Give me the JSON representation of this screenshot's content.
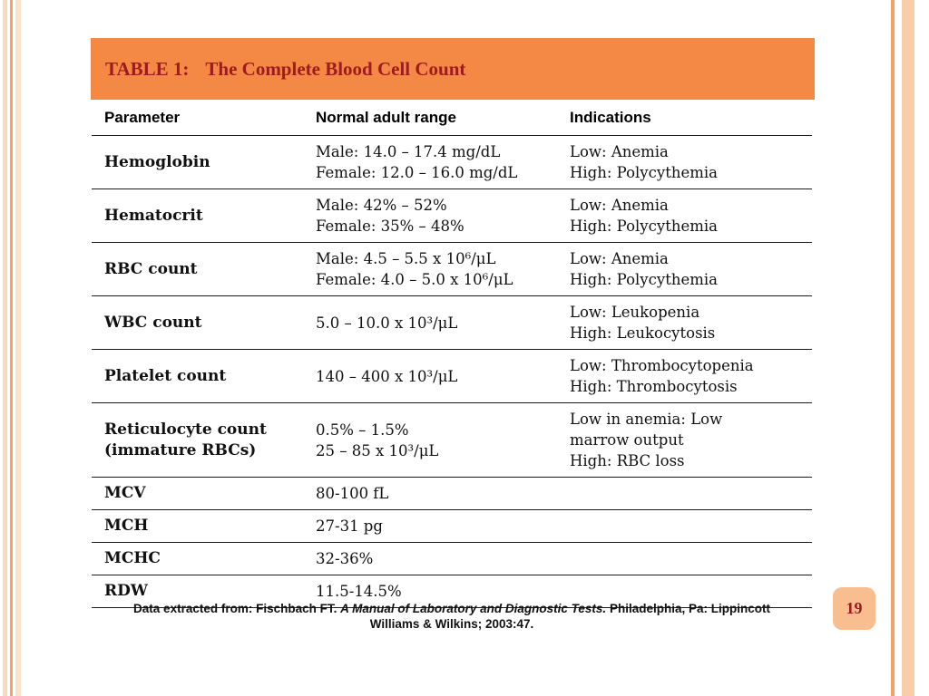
{
  "slide": {
    "title": {
      "label": "TABLE 1:",
      "text": "The Complete Blood Cell Count"
    },
    "table": {
      "headers": [
        "Parameter",
        "Normal adult range",
        "Indications"
      ],
      "rows": [
        {
          "parameter": "Hemoglobin",
          "range": "Male: 14.0 – 17.4 mg/dL\nFemale: 12.0 – 16.0 mg/dL",
          "indications": "Low: Anemia\nHigh: Polycythemia"
        },
        {
          "parameter": "Hematocrit",
          "range": "Male: 42% – 52%\nFemale: 35% – 48%",
          "indications": "Low: Anemia\nHigh: Polycythemia"
        },
        {
          "parameter": "RBC count",
          "range": "Male: 4.5 – 5.5 x 10⁶/μL\nFemale: 4.0 – 5.0 x 10⁶/μL",
          "indications": "Low: Anemia\nHigh: Polycythemia"
        },
        {
          "parameter": "WBC count",
          "range": "5.0 – 10.0 x 10³/μL",
          "indications": "Low: Leukopenia\nHigh: Leukocytosis"
        },
        {
          "parameter": "Platelet count",
          "range": "140 – 400 x 10³/μL",
          "indications": "Low: Thrombocytopenia\nHigh: Thrombocytosis"
        },
        {
          "parameter": "Reticulocyte count\n(immature RBCs)",
          "range": "0.5% – 1.5%\n25 – 85 x 10³/μL",
          "indications": "Low in anemia: Low\nmarrow output\nHigh: RBC loss"
        },
        {
          "parameter": "MCV",
          "range": "80-100 fL",
          "indications": ""
        },
        {
          "parameter": "MCH",
          "range": "27-31 pg",
          "indications": ""
        },
        {
          "parameter": "MCHC",
          "range": "32-36%",
          "indications": ""
        },
        {
          "parameter": "RDW",
          "range": "11.5-14.5%",
          "indications": ""
        }
      ]
    },
    "footnote": {
      "prefix": "Data extracted from: Fischbach FT.",
      "source_italic": "A Manual of Laboratory and Diagnostic Tests.",
      "suffix": "Philadelphia, Pa: Lippincott Williams & Wilkins; 2003:47."
    },
    "page_number": "19",
    "colors": {
      "title_bar": "#F48845",
      "title_text": "#9E1B1E",
      "page_badge": "#F9BE8F",
      "rule": "#1B1B1B",
      "edge_stripe": "#F2A169"
    }
  }
}
